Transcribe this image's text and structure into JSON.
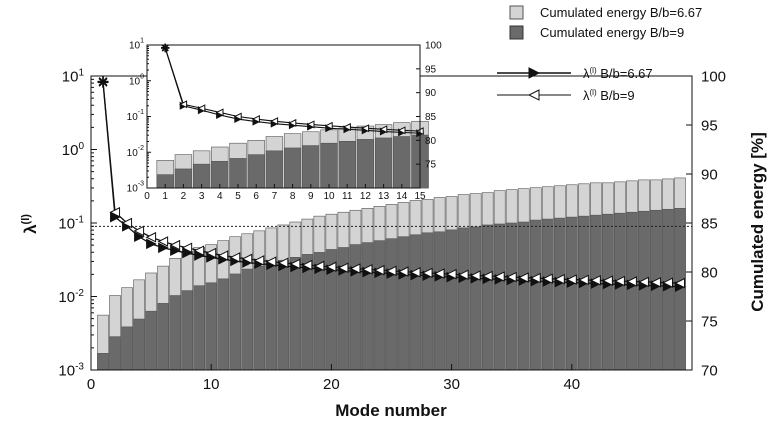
{
  "chart_data": [
    {
      "type": "bar+line",
      "xlabel": "Mode number",
      "ylabel_left": "λ(l)",
      "ylabel_right": "Cumulated energy [%]",
      "y_left_scale": "log",
      "ylim_left": [
        0.001,
        10
      ],
      "ylim_right": [
        70,
        100
      ],
      "xlim": [
        0,
        50
      ],
      "x_ticks": [
        "0",
        "10",
        "20",
        "30",
        "40"
      ],
      "y_left_ticks": [
        {
          "base": "10",
          "exp": "-3",
          "value": 0.001
        },
        {
          "base": "10",
          "exp": "-2",
          "value": 0.01
        },
        {
          "base": "10",
          "exp": "-1",
          "value": 0.1
        },
        {
          "base": "10",
          "exp": "0",
          "value": 1
        },
        {
          "base": "10",
          "exp": "1",
          "value": 10
        }
      ],
      "y_right_ticks": [
        "70",
        "75",
        "80",
        "85",
        "90",
        "95",
        "100"
      ],
      "reference_line": {
        "axis": "left",
        "value": 0.09,
        "style": "dotted"
      },
      "legend": [
        {
          "label": "Cumulated energy B/b=6.67",
          "kind": "bar",
          "color": "#d4d4d4"
        },
        {
          "label": "Cumulated energy B/b=9",
          "kind": "bar",
          "color": "#6a6a6a"
        },
        {
          "label_main": "λ",
          "label_sup": "(l)",
          "label_rest": " B/b=6.67",
          "kind": "line",
          "marker": "filled-triangle-right"
        },
        {
          "label_main": "λ",
          "label_sup": "(l)",
          "label_rest": " B/b=9",
          "kind": "line",
          "marker": "open-triangle-left"
        }
      ],
      "series": [
        {
          "name": "Cumulated energy B/b=6.67",
          "kind": "bar",
          "axis": "right",
          "color": "#d4d4d4",
          "x": [
            1,
            2,
            3,
            4,
            5,
            6,
            7,
            8,
            9,
            10,
            11,
            12,
            13,
            14,
            15,
            16,
            17,
            18,
            19,
            20,
            21,
            22,
            23,
            24,
            25,
            26,
            27,
            28,
            29,
            30,
            31,
            32,
            33,
            34,
            35,
            36,
            37,
            38,
            39,
            40,
            41,
            42,
            43,
            44,
            45,
            46,
            47,
            48,
            49
          ],
          "values": [
            75.6,
            77.6,
            78.4,
            79.2,
            79.9,
            80.6,
            81.4,
            82.1,
            82.5,
            82.8,
            83.2,
            83.6,
            83.9,
            84.2,
            84.5,
            84.8,
            85.1,
            85.4,
            85.7,
            85.9,
            86.1,
            86.3,
            86.5,
            86.7,
            86.9,
            87.1,
            87.3,
            87.4,
            87.6,
            87.7,
            87.9,
            88.0,
            88.1,
            88.3,
            88.4,
            88.5,
            88.6,
            88.7,
            88.8,
            88.9,
            89.0,
            89.1,
            89.1,
            89.2,
            89.3,
            89.4,
            89.4,
            89.5,
            89.6
          ]
        },
        {
          "name": "Cumulated energy B/b=9",
          "kind": "bar",
          "axis": "right",
          "color": "#6a6a6a",
          "x": [
            1,
            2,
            3,
            4,
            5,
            6,
            7,
            8,
            9,
            10,
            11,
            12,
            13,
            14,
            15,
            16,
            17,
            18,
            19,
            20,
            21,
            22,
            23,
            24,
            25,
            26,
            27,
            28,
            29,
            30,
            31,
            32,
            33,
            34,
            35,
            36,
            37,
            38,
            39,
            40,
            41,
            42,
            43,
            44,
            45,
            46,
            47,
            48,
            49
          ],
          "values": [
            71.7,
            73.4,
            74.4,
            75.2,
            76.0,
            76.8,
            77.6,
            78.1,
            78.6,
            78.9,
            79.3,
            79.8,
            80.3,
            80.6,
            80.9,
            81.2,
            81.5,
            81.8,
            82.0,
            82.3,
            82.5,
            82.8,
            83.0,
            83.2,
            83.4,
            83.6,
            83.8,
            84.0,
            84.1,
            84.3,
            84.5,
            84.6,
            84.8,
            84.9,
            85.0,
            85.1,
            85.3,
            85.4,
            85.5,
            85.6,
            85.7,
            85.8,
            85.9,
            86.0,
            86.1,
            86.2,
            86.3,
            86.4,
            86.5
          ]
        },
        {
          "name": "λ(l) B/b=6.67",
          "kind": "line",
          "axis": "left",
          "marker": "filled-triangle-right",
          "x": [
            1,
            2,
            3,
            4,
            5,
            6,
            7,
            8,
            9,
            10,
            11,
            12,
            13,
            14,
            15,
            16,
            17,
            18,
            19,
            20,
            21,
            22,
            23,
            24,
            25,
            26,
            27,
            28,
            29,
            30,
            31,
            32,
            33,
            34,
            35,
            36,
            37,
            38,
            39,
            40,
            41,
            42,
            43,
            44,
            45,
            46,
            47,
            48,
            49
          ],
          "values": [
            8.2,
            0.12,
            0.09,
            0.065,
            0.052,
            0.046,
            0.042,
            0.039,
            0.036,
            0.034,
            0.032,
            0.0305,
            0.029,
            0.028,
            0.027,
            0.026,
            0.0252,
            0.0245,
            0.0238,
            0.0232,
            0.0226,
            0.022,
            0.0215,
            0.021,
            0.0205,
            0.02,
            0.0196,
            0.0192,
            0.0188,
            0.0184,
            0.018,
            0.0177,
            0.0174,
            0.0171,
            0.0168,
            0.0165,
            0.0162,
            0.016,
            0.0157,
            0.0155,
            0.0153,
            0.015,
            0.0148,
            0.0146,
            0.0144,
            0.0142,
            0.014,
            0.0138,
            0.0136
          ]
        },
        {
          "name": "λ(l) B/b=9",
          "kind": "line",
          "axis": "left",
          "marker": "open-triangle-left",
          "x": [
            1,
            2,
            3,
            4,
            5,
            6,
            7,
            8,
            9,
            10,
            11,
            12,
            13,
            14,
            15,
            16,
            17,
            18,
            19,
            20,
            21,
            22,
            23,
            24,
            25,
            26,
            27,
            28,
            29,
            30,
            31,
            32,
            33,
            34,
            35,
            36,
            37,
            38,
            39,
            40,
            41,
            42,
            43,
            44,
            45,
            46,
            47,
            48,
            49
          ],
          "values": [
            8.4,
            0.14,
            0.1,
            0.078,
            0.064,
            0.056,
            0.05,
            0.046,
            0.042,
            0.039,
            0.036,
            0.034,
            0.0325,
            0.031,
            0.0298,
            0.0287,
            0.0277,
            0.0268,
            0.026,
            0.0253,
            0.0246,
            0.024,
            0.0234,
            0.0228,
            0.0223,
            0.0218,
            0.0213,
            0.0209,
            0.0205,
            0.0201,
            0.0197,
            0.0193,
            0.019,
            0.0187,
            0.0184,
            0.0181,
            0.0178,
            0.0175,
            0.0172,
            0.017,
            0.0168,
            0.0166,
            0.0164,
            0.0162,
            0.016,
            0.0158,
            0.0156,
            0.0154,
            0.0152
          ]
        }
      ]
    },
    {
      "type": "bar+line",
      "role": "inset",
      "xlim": [
        0,
        15
      ],
      "ylim_left": [
        0.001,
        10
      ],
      "ylim_right": [
        70,
        100
      ],
      "x_ticks": [
        "0",
        "1",
        "2",
        "3",
        "4",
        "5",
        "6",
        "7",
        "8",
        "9",
        "10",
        "11",
        "12",
        "13",
        "14",
        "15"
      ],
      "y_left_ticks": [
        {
          "base": "10",
          "exp": "-3",
          "value": 0.001
        },
        {
          "base": "10",
          "exp": "-2",
          "value": 0.01
        },
        {
          "base": "10",
          "exp": "-1",
          "value": 0.1
        },
        {
          "base": "10",
          "exp": "0",
          "value": 1
        },
        {
          "base": "10",
          "exp": "1",
          "value": 10
        }
      ],
      "y_right_ticks": [
        "75",
        "80",
        "85",
        "90",
        "95",
        "100"
      ],
      "series": [
        {
          "name": "Cumulated energy B/b=6.67",
          "kind": "bar",
          "axis": "right",
          "color": "#d4d4d4",
          "x": [
            1,
            2,
            3,
            4,
            5,
            6,
            7,
            8,
            9,
            10,
            11,
            12,
            13,
            14,
            15
          ],
          "values": [
            75.8,
            77.0,
            77.8,
            78.6,
            79.4,
            80.0,
            80.8,
            81.4,
            81.8,
            82.2,
            82.6,
            83.0,
            83.3,
            83.7,
            84.0
          ]
        },
        {
          "name": "Cumulated energy B/b=9",
          "kind": "bar",
          "axis": "right",
          "color": "#6a6a6a",
          "x": [
            1,
            2,
            3,
            4,
            5,
            6,
            7,
            8,
            9,
            10,
            11,
            12,
            13,
            14,
            15
          ],
          "values": [
            72.8,
            74.0,
            75.0,
            75.6,
            76.2,
            77.0,
            77.8,
            78.4,
            78.9,
            79.4,
            79.8,
            80.2,
            80.5,
            80.8,
            81.1
          ]
        },
        {
          "name": "λ(l) B/b=6.67",
          "kind": "line",
          "axis": "left",
          "marker": "filled-triangle-right",
          "x": [
            1,
            2,
            3,
            4,
            5,
            6,
            7,
            8,
            9,
            10,
            11,
            12,
            13,
            14,
            15
          ],
          "values": [
            8.2,
            0.2,
            0.15,
            0.11,
            0.085,
            0.072,
            0.063,
            0.057,
            0.052,
            0.047,
            0.044,
            0.041,
            0.038,
            0.036,
            0.034
          ]
        },
        {
          "name": "λ(l) B/b=9",
          "kind": "line",
          "axis": "left",
          "marker": "open-triangle-left",
          "x": [
            1,
            2,
            3,
            4,
            5,
            6,
            7,
            8,
            9,
            10,
            11,
            12,
            13,
            14,
            15
          ],
          "values": [
            8.4,
            0.22,
            0.17,
            0.13,
            0.1,
            0.085,
            0.074,
            0.066,
            0.06,
            0.055,
            0.051,
            0.047,
            0.044,
            0.041,
            0.039
          ]
        }
      ]
    }
  ]
}
